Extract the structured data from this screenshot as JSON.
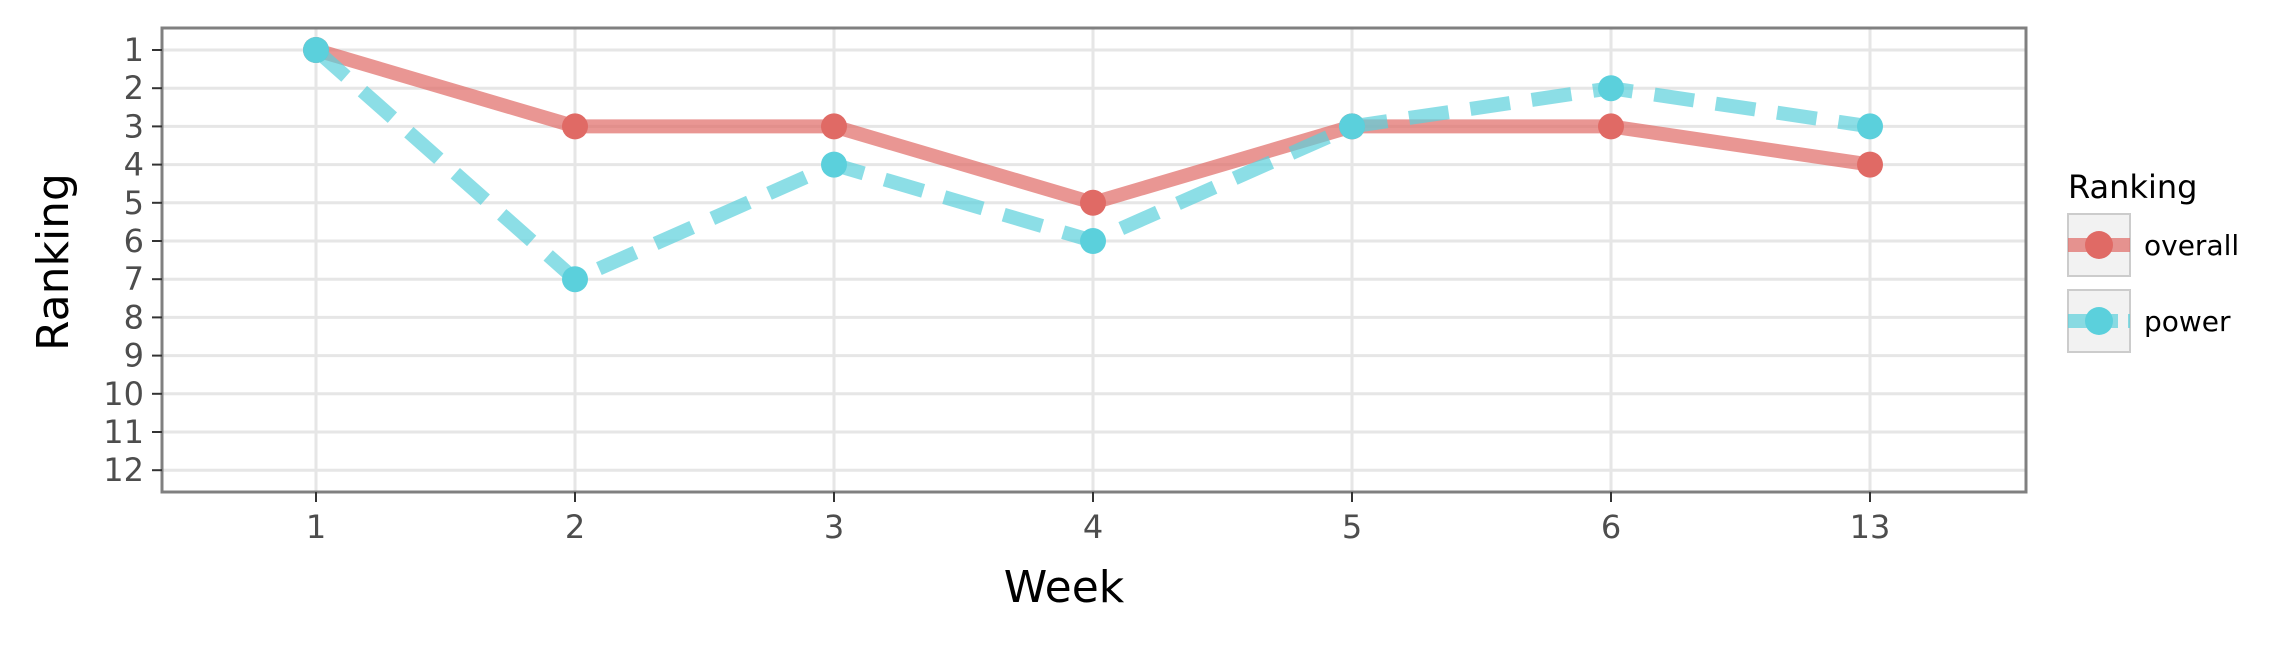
{
  "chart_data": {
    "type": "line",
    "x_categories": [
      "1",
      "2",
      "3",
      "4",
      "5",
      "6",
      "13"
    ],
    "xlabel": "Week",
    "ylabel": "Ranking",
    "y_ticks": [
      1,
      2,
      3,
      4,
      5,
      6,
      7,
      8,
      9,
      10,
      11,
      12
    ],
    "ylim": [
      1,
      12
    ],
    "y_reversed": true,
    "grid": true,
    "legend": {
      "title": "Ranking",
      "placement": "right"
    },
    "series": [
      {
        "name": "overall",
        "color": "#e06a65",
        "line_style": "solid",
        "values": [
          1,
          3,
          3,
          5,
          3,
          3,
          4
        ]
      },
      {
        "name": "power",
        "color": "#5bd0dc",
        "line_style": "dashed",
        "values": [
          1,
          7,
          4,
          6,
          3,
          2,
          3
        ]
      }
    ]
  }
}
